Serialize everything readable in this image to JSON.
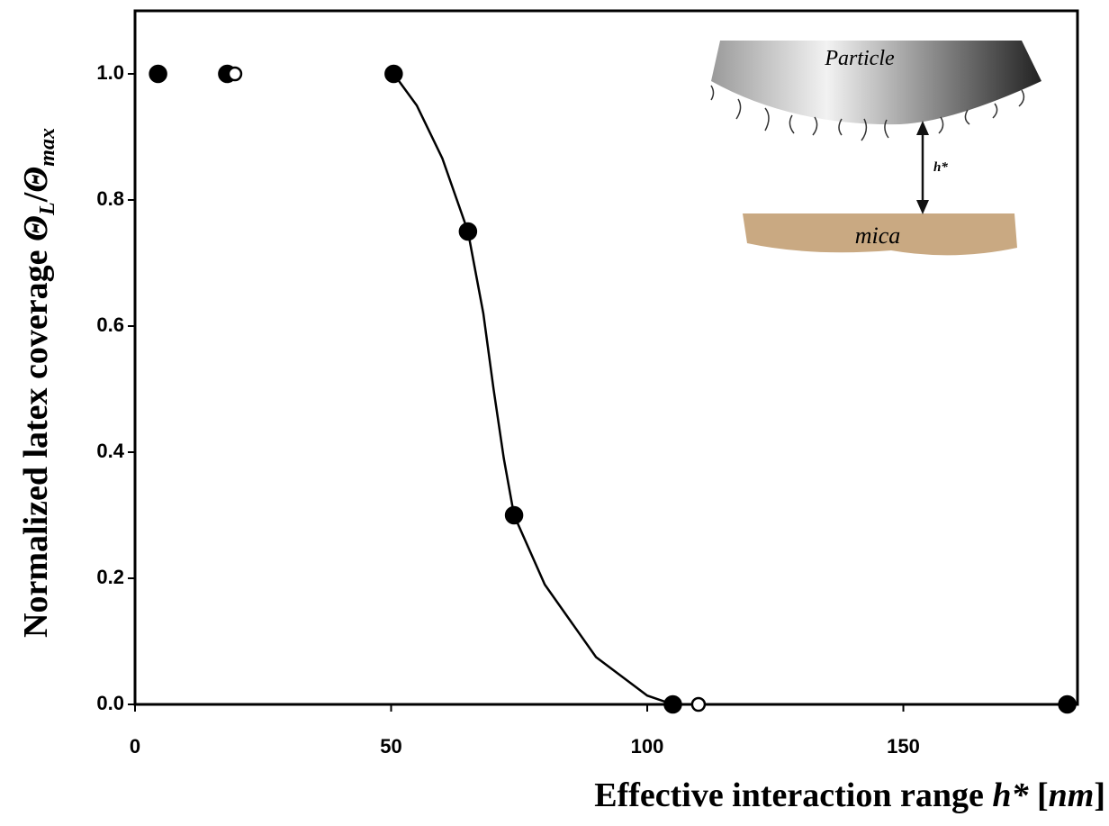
{
  "chart_data": {
    "type": "scatter",
    "x_label": [
      "Effective interaction range ",
      "h*",
      " [",
      "nm",
      "]"
    ],
    "y_label": [
      "Normalized latex coverage ",
      "Θ",
      "L",
      "/",
      "Θ",
      "max"
    ],
    "annotations": [
      "Particle",
      "h*",
      "mica"
    ],
    "xlim": [
      0,
      184
    ],
    "ylim": [
      0,
      1.1
    ],
    "xticks": [
      0,
      50,
      100,
      150
    ],
    "yticks": [
      {
        "value": 0,
        "label": "0.0"
      },
      {
        "value": 0.2,
        "label": "0.2"
      },
      {
        "value": 0.4,
        "label": "0.4"
      },
      {
        "value": 0.6,
        "label": "0.6"
      },
      {
        "value": 0.8,
        "label": "0.8"
      },
      {
        "value": 1,
        "label": "1.0"
      }
    ],
    "series": [
      {
        "marker": "filled",
        "color": "#000000",
        "x": [
          4.5,
          18,
          50.5,
          65,
          74,
          105,
          182
        ],
        "values": [
          1,
          1,
          1,
          0.75,
          0.3,
          0,
          0
        ]
      },
      {
        "marker": "open",
        "color": "#000000",
        "x": [
          19.5,
          110
        ],
        "values": [
          1,
          0
        ]
      },
      {
        "marker": "line",
        "color": "#000000",
        "x": [
          50.5,
          55,
          60,
          65,
          68,
          70,
          72,
          74,
          80,
          90,
          100,
          105
        ],
        "values": [
          1,
          0.95,
          0.866,
          0.75,
          0.62,
          0.5,
          0.39,
          0.3,
          0.19,
          0.075,
          0.014,
          0
        ]
      }
    ]
  }
}
